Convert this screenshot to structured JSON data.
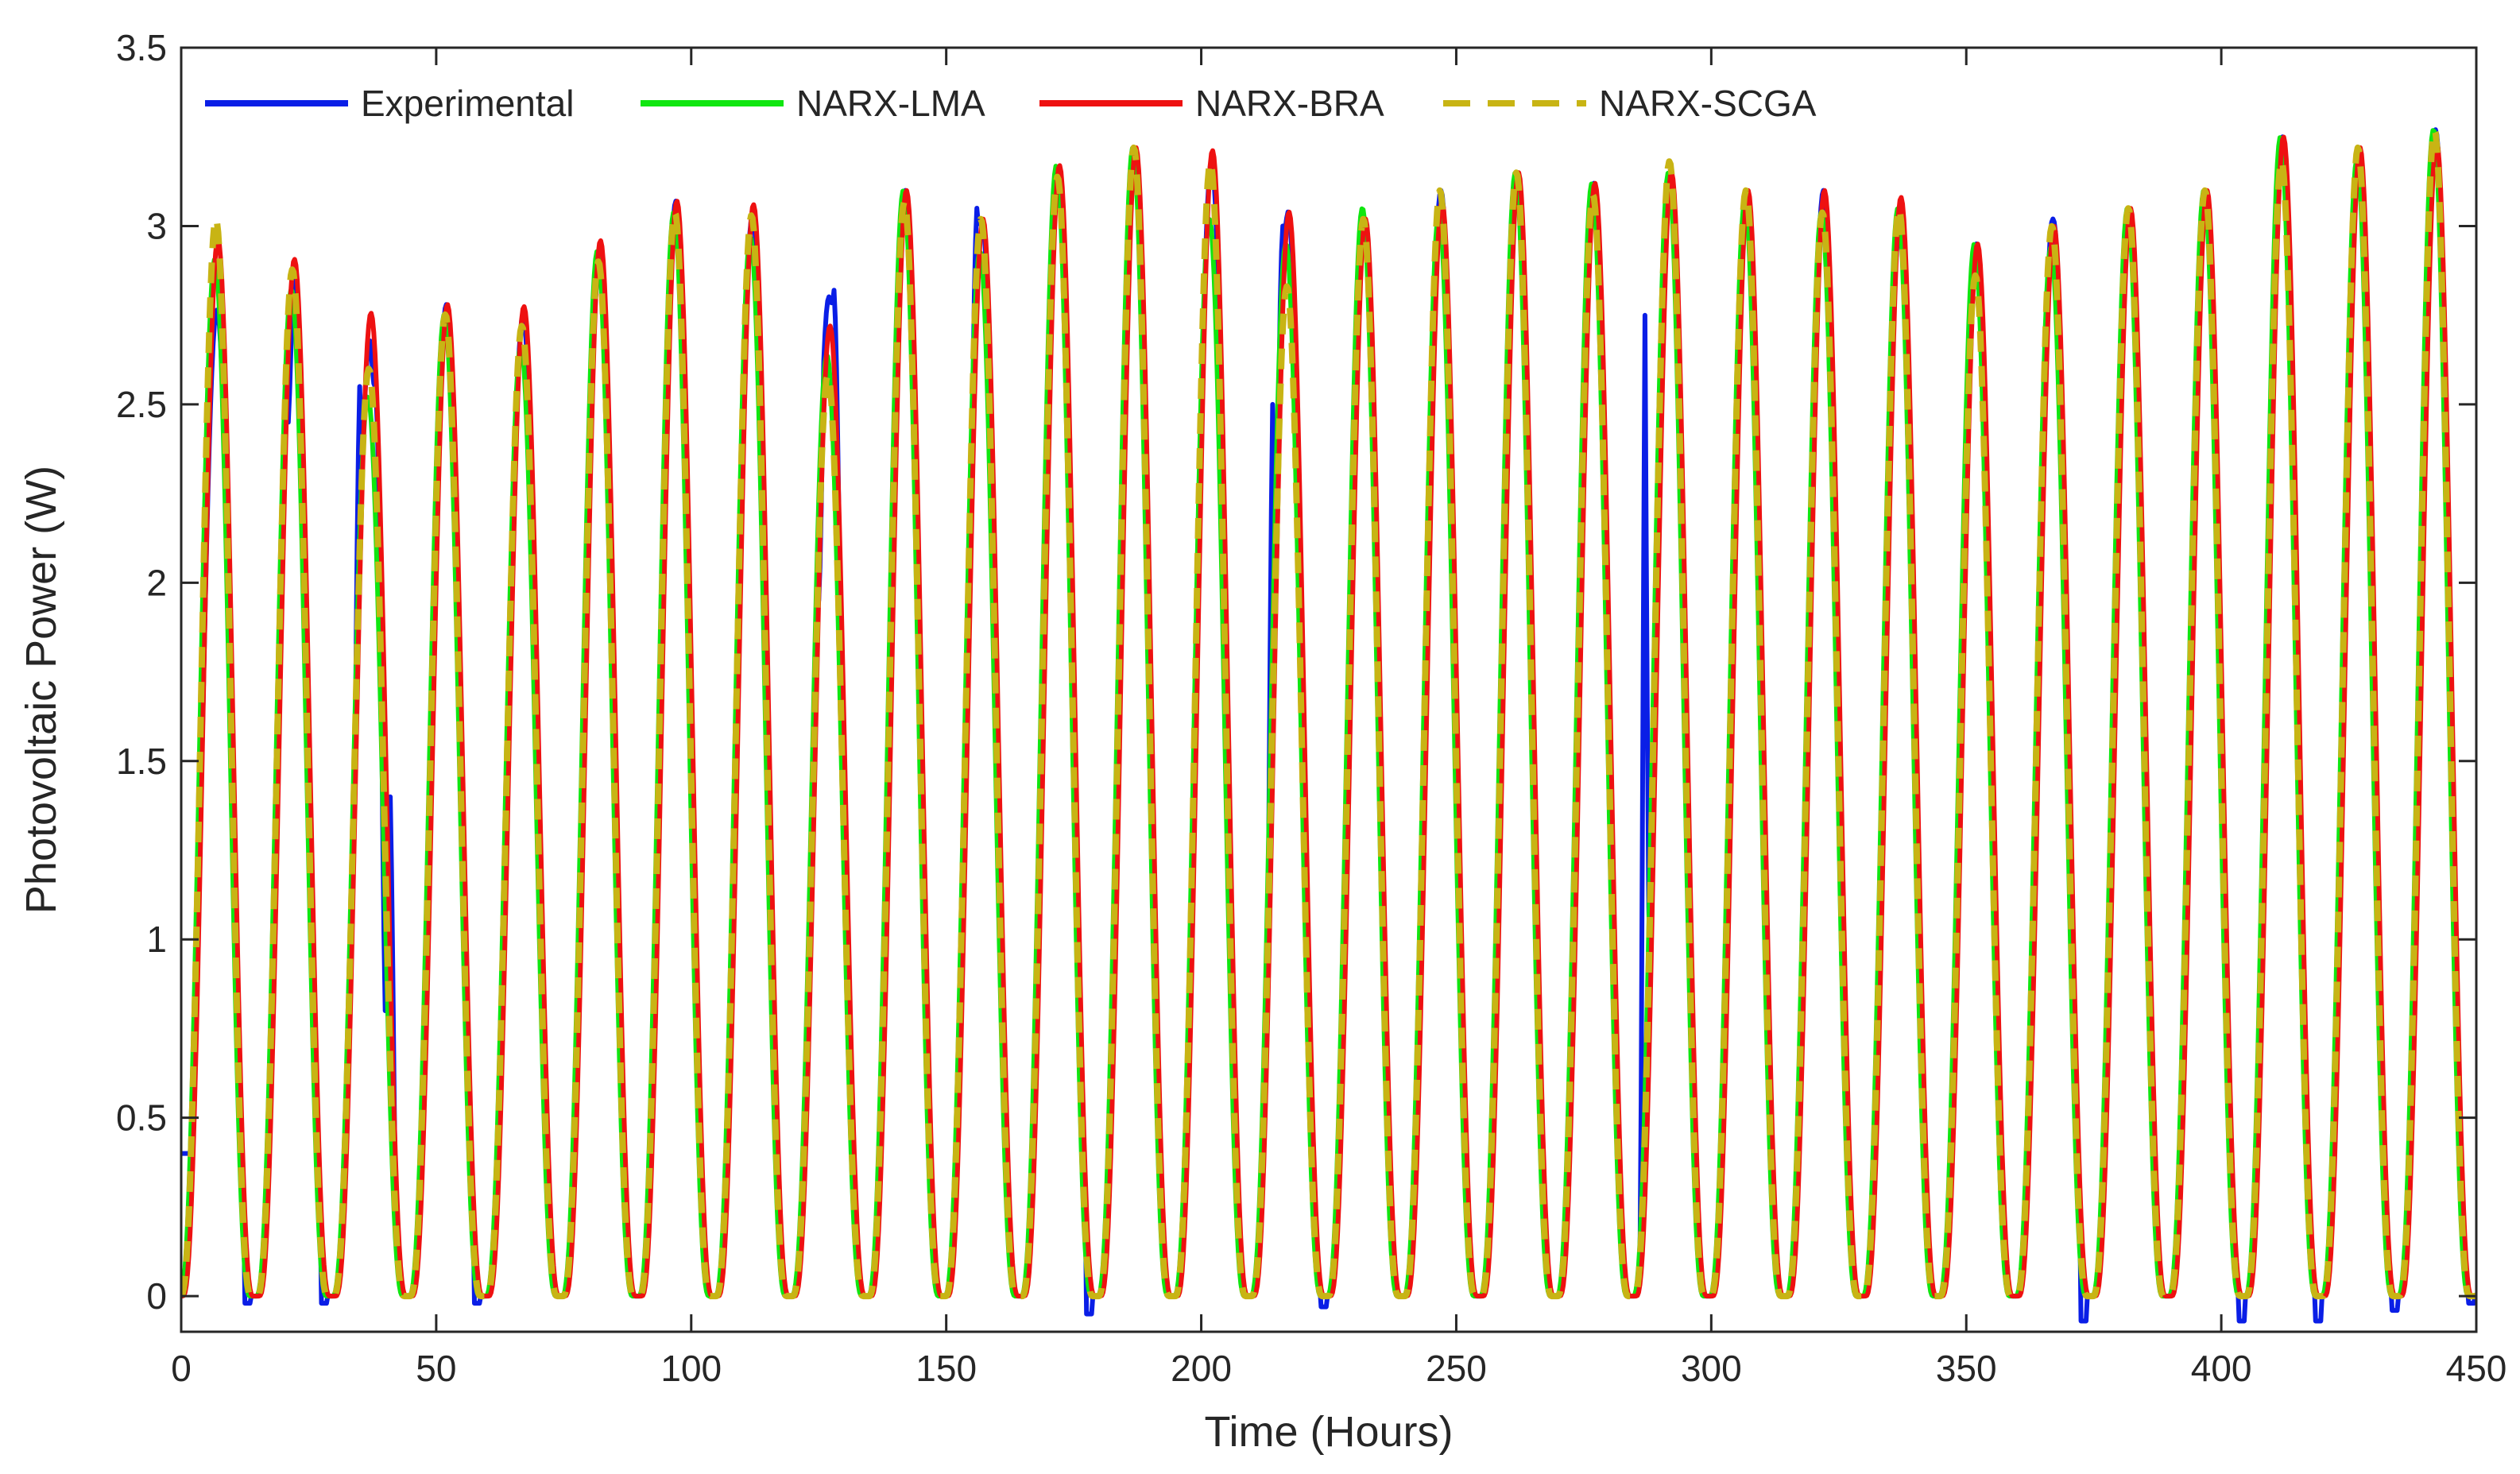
{
  "chart_data": {
    "type": "line",
    "title": "",
    "xlabel": "Time (Hours)",
    "ylabel": "Photovoltaic Power (W)",
    "xlim": [
      0,
      450
    ],
    "ylim": [
      -0.1,
      3.5
    ],
    "xticks": [
      0,
      50,
      100,
      150,
      200,
      250,
      300,
      350,
      400,
      450
    ],
    "yticks": [
      0,
      0.5,
      1,
      1.5,
      2,
      2.5,
      3,
      3.5
    ],
    "xtick_labels": [
      "0",
      "50",
      "100",
      "150",
      "200",
      "250",
      "300",
      "350",
      "400",
      "450"
    ],
    "ytick_labels": [
      "0",
      "0.5",
      "1",
      "1.5",
      "2",
      "2.5",
      "3",
      "3.5"
    ],
    "grid": false,
    "legend_position": "top (inside axes, single row)",
    "day_peaks": [
      2.85,
      2.85,
      2.6,
      2.78,
      2.72,
      2.93,
      3.07,
      3.03,
      2.72,
      3.1,
      3.02,
      3.17,
      3.22,
      3.18,
      2.98,
      3.02,
      3.1,
      3.15,
      3.12,
      3.15,
      3.1,
      3.1,
      3.05,
      2.95,
      3.0,
      3.05,
      3.1,
      3.25,
      3.22,
      3.27
    ],
    "day_period_hours": 15,
    "peak_offset_hours": 7,
    "night_level": 0.0,
    "start_value": 0.4,
    "series": [
      {
        "name": "Experimental",
        "color": "#0a1ee6",
        "dash": "solid",
        "noise_events": [
          {
            "x": 21,
            "y": 2.45
          },
          {
            "x": 35,
            "y": 2.55
          },
          {
            "x": 38,
            "y": 2.55
          },
          {
            "x": 41,
            "y": 1.4
          },
          {
            "x": 40,
            "y": 0.8
          },
          {
            "x": 125,
            "y": 1.95
          },
          {
            "x": 128,
            "y": 2.82
          },
          {
            "x": 156,
            "y": 3.05
          },
          {
            "x": 216,
            "y": 3.0
          },
          {
            "x": 214,
            "y": 2.5
          },
          {
            "x": 287,
            "y": 2.75
          },
          {
            "x": 336,
            "y": 2.9
          },
          {
            "x": 339,
            "y": 2.15
          },
          {
            "x": 352,
            "y": 2.95
          },
          {
            "x": 367,
            "y": 3.02
          },
          {
            "x": 382,
            "y": 3.05
          }
        ],
        "min_dips": [
          {
            "x": 13,
            "y": -0.02
          },
          {
            "x": 28,
            "y": -0.02
          },
          {
            "x": 58,
            "y": -0.02
          },
          {
            "x": 178,
            "y": -0.05
          },
          {
            "x": 224,
            "y": -0.03
          },
          {
            "x": 373,
            "y": -0.07
          },
          {
            "x": 404,
            "y": -0.07
          },
          {
            "x": 419,
            "y": -0.07
          },
          {
            "x": 434,
            "y": -0.04
          },
          {
            "x": 449,
            "y": -0.02
          }
        ]
      },
      {
        "name": "NARX-LMA",
        "color": "#10e610",
        "dash": "solid"
      },
      {
        "name": "NARX-BRA",
        "color": "#ee1111",
        "dash": "solid"
      },
      {
        "name": "NARX-SCGA",
        "color": "#c8b414",
        "dash": "dashed"
      }
    ]
  }
}
